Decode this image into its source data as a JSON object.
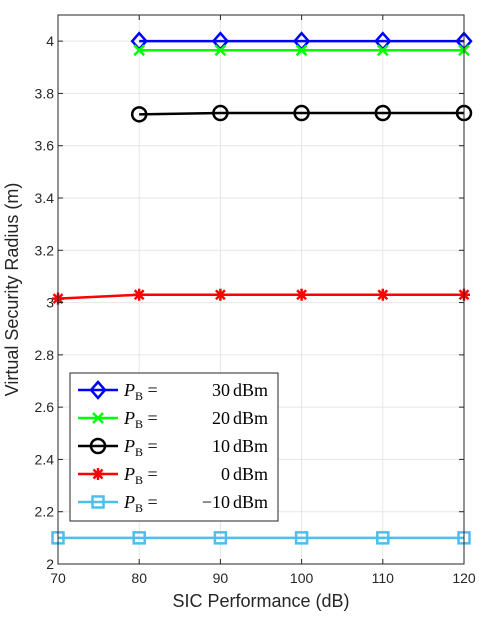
{
  "chart_data": {
    "type": "line",
    "title": "",
    "xlabel": "SIC Performance (dB)",
    "ylabel": "Virtual Security Radius (m)",
    "xlim": [
      70,
      120
    ],
    "ylim": [
      2,
      4.1
    ],
    "xticks": [
      "70",
      "80",
      "90",
      "100",
      "110",
      "120"
    ],
    "yticks": [
      "2",
      "2.2",
      "2.4",
      "2.6",
      "2.8",
      "3",
      "3.2",
      "3.4",
      "3.6",
      "3.8",
      "4"
    ],
    "grid": true,
    "legend_position": "bottom-left",
    "series": [
      {
        "name": "P_B = 30 dBm",
        "subscript": "B",
        "power": "30",
        "unit": "dBm",
        "color": "#0000ff",
        "marker": "diamond",
        "x": [
          80,
          90,
          100,
          110,
          120
        ],
        "y": [
          4.0,
          4.0,
          4.0,
          4.0,
          4.0
        ]
      },
      {
        "name": "P_B = 20 dBm",
        "subscript": "B",
        "power": "20",
        "unit": "dBm",
        "color": "#00ff00",
        "marker": "x",
        "x": [
          80,
          90,
          100,
          110,
          120
        ],
        "y": [
          3.965,
          3.965,
          3.965,
          3.965,
          3.965
        ]
      },
      {
        "name": "P_B = 10 dBm",
        "subscript": "B",
        "power": "10",
        "unit": "dBm",
        "color": "#000000",
        "marker": "circle",
        "x": [
          80,
          90,
          100,
          110,
          120
        ],
        "y": [
          3.72,
          3.725,
          3.725,
          3.725,
          3.725
        ]
      },
      {
        "name": "P_B = 0 dBm",
        "subscript": "B",
        "power": "0",
        "unit": "dBm",
        "color": "#ff0000",
        "marker": "asterisk",
        "x": [
          70,
          80,
          90,
          100,
          110,
          120
        ],
        "y": [
          3.015,
          3.03,
          3.03,
          3.03,
          3.03,
          3.03
        ]
      },
      {
        "name": "P_B = −10 dBm",
        "subscript": "B",
        "power": "−10",
        "unit": "dBm",
        "color": "#4dbeee",
        "marker": "square",
        "x": [
          70,
          80,
          90,
          100,
          110,
          120
        ],
        "y": [
          2.1,
          2.1,
          2.1,
          2.1,
          2.1,
          2.1
        ]
      }
    ]
  }
}
